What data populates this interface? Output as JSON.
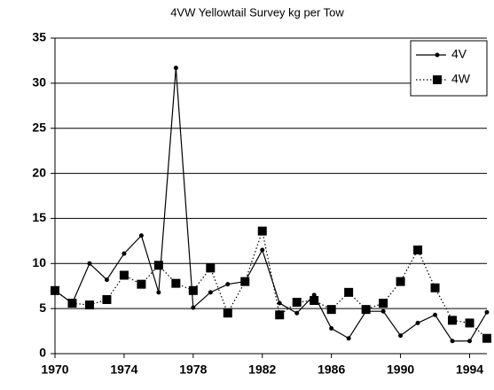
{
  "chart_data": {
    "type": "line",
    "title": "4VW Yellowtail Survey kg per Tow",
    "x": [
      1970,
      1971,
      1972,
      1973,
      1974,
      1975,
      1976,
      1977,
      1978,
      1979,
      1980,
      1981,
      1982,
      1983,
      1984,
      1985,
      1986,
      1987,
      1988,
      1989,
      1990,
      1991,
      1992,
      1993,
      1994,
      1995
    ],
    "series": [
      {
        "name": "4V",
        "color": "#000000",
        "line": "solid",
        "marker": "circle",
        "values": [
          7.0,
          5.6,
          10.0,
          8.2,
          11.1,
          13.1,
          6.8,
          31.7,
          5.1,
          6.8,
          7.7,
          8.0,
          11.5,
          5.6,
          4.5,
          6.5,
          2.8,
          1.7,
          4.7,
          4.7,
          2.0,
          3.4,
          4.3,
          1.4,
          1.4,
          4.6
        ]
      },
      {
        "name": "4W",
        "color": "#000000",
        "line": "dotted",
        "marker": "square",
        "values": [
          7.0,
          5.6,
          5.4,
          6.0,
          8.7,
          7.7,
          9.8,
          7.8,
          7.0,
          9.5,
          4.5,
          8.0,
          13.6,
          4.3,
          5.7,
          5.9,
          4.9,
          6.8,
          4.9,
          5.6,
          8.0,
          11.5,
          7.3,
          3.7,
          3.4,
          1.7
        ]
      }
    ],
    "xlim": [
      1970,
      1995
    ],
    "xticks": [
      1970,
      1974,
      1978,
      1982,
      1986,
      1990,
      1994
    ],
    "ylim": [
      0,
      35
    ],
    "yticks": [
      0,
      5,
      10,
      15,
      20,
      25,
      30,
      35
    ],
    "grid": true,
    "legend": "top-right"
  }
}
